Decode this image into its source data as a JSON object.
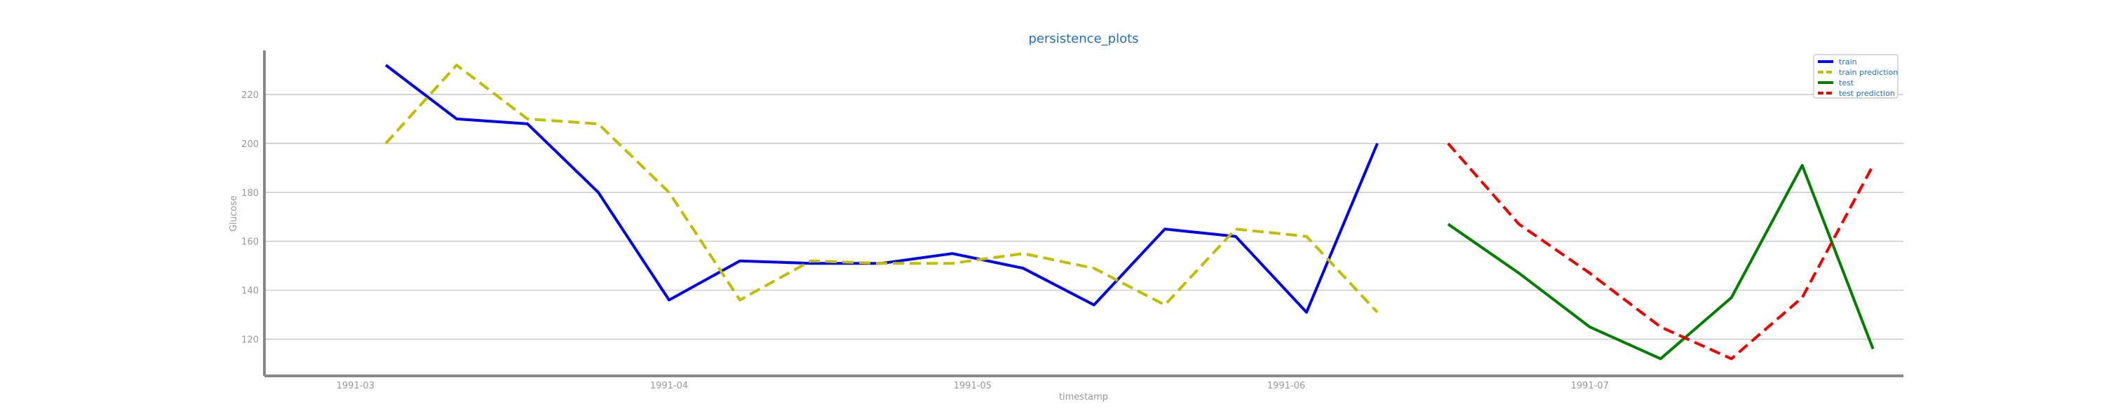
{
  "chart_data": {
    "type": "line",
    "title": "persistence_plots",
    "xlabel": "timestamp",
    "ylabel": "Glucose",
    "ylim": [
      105,
      238
    ],
    "xlim": [
      "1991-02-20",
      "1991-08-01"
    ],
    "grid": true,
    "legend_position": "top-right",
    "yticks": [
      120,
      140,
      160,
      180,
      200,
      220
    ],
    "xticks": [
      {
        "date": "1991-03-01",
        "label": "1991-03"
      },
      {
        "date": "1991-04-01",
        "label": "1991-04"
      },
      {
        "date": "1991-05-01",
        "label": "1991-05"
      },
      {
        "date": "1991-06-01",
        "label": "1991-06"
      },
      {
        "date": "1991-07-01",
        "label": "1991-07"
      }
    ],
    "series": [
      {
        "name": "train",
        "color": "#0000ee",
        "dash": "solid",
        "points": [
          {
            "x": "1991-03-04",
            "y": 232
          },
          {
            "x": "1991-03-11",
            "y": 210
          },
          {
            "x": "1991-03-18",
            "y": 208
          },
          {
            "x": "1991-03-25",
            "y": 180
          },
          {
            "x": "1991-04-01",
            "y": 136
          },
          {
            "x": "1991-04-08",
            "y": 152
          },
          {
            "x": "1991-04-15",
            "y": 151
          },
          {
            "x": "1991-04-22",
            "y": 151
          },
          {
            "x": "1991-04-29",
            "y": 155
          },
          {
            "x": "1991-05-06",
            "y": 149
          },
          {
            "x": "1991-05-13",
            "y": 134
          },
          {
            "x": "1991-05-20",
            "y": 165
          },
          {
            "x": "1991-05-27",
            "y": 162
          },
          {
            "x": "1991-06-03",
            "y": 131
          },
          {
            "x": "1991-06-10",
            "y": 200
          }
        ]
      },
      {
        "name": "train prediction",
        "color": "#bfbf00",
        "dash": "dashed",
        "points": [
          {
            "x": "1991-03-04",
            "y": 200
          },
          {
            "x": "1991-03-11",
            "y": 232
          },
          {
            "x": "1991-03-18",
            "y": 210
          },
          {
            "x": "1991-03-25",
            "y": 208
          },
          {
            "x": "1991-04-01",
            "y": 180
          },
          {
            "x": "1991-04-08",
            "y": 136
          },
          {
            "x": "1991-04-15",
            "y": 152
          },
          {
            "x": "1991-04-22",
            "y": 151
          },
          {
            "x": "1991-04-29",
            "y": 151
          },
          {
            "x": "1991-05-06",
            "y": 155
          },
          {
            "x": "1991-05-13",
            "y": 149
          },
          {
            "x": "1991-05-20",
            "y": 134
          },
          {
            "x": "1991-05-27",
            "y": 165
          },
          {
            "x": "1991-06-03",
            "y": 162
          },
          {
            "x": "1991-06-10",
            "y": 131
          }
        ]
      },
      {
        "name": "test",
        "color": "#007f00",
        "dash": "solid",
        "points": [
          {
            "x": "1991-06-17",
            "y": 167
          },
          {
            "x": "1991-06-24",
            "y": 147
          },
          {
            "x": "1991-07-01",
            "y": 125
          },
          {
            "x": "1991-07-08",
            "y": 112
          },
          {
            "x": "1991-07-15",
            "y": 137
          },
          {
            "x": "1991-07-22",
            "y": 191
          },
          {
            "x": "1991-07-29",
            "y": 116
          }
        ]
      },
      {
        "name": "test prediction",
        "color": "#ee0000",
        "dash": "dashed",
        "points": [
          {
            "x": "1991-06-17",
            "y": 200
          },
          {
            "x": "1991-06-24",
            "y": 167
          },
          {
            "x": "1991-07-01",
            "y": 147
          },
          {
            "x": "1991-07-08",
            "y": 125
          },
          {
            "x": "1991-07-15",
            "y": 112
          },
          {
            "x": "1991-07-22",
            "y": 137
          },
          {
            "x": "1991-07-29",
            "y": 191
          }
        ]
      }
    ],
    "colors": {
      "title": "#1f6fbf",
      "axis_text": "#999999",
      "grid": "#cccccc",
      "spine": "#888888",
      "legend_text": "#1f6fbf"
    }
  }
}
